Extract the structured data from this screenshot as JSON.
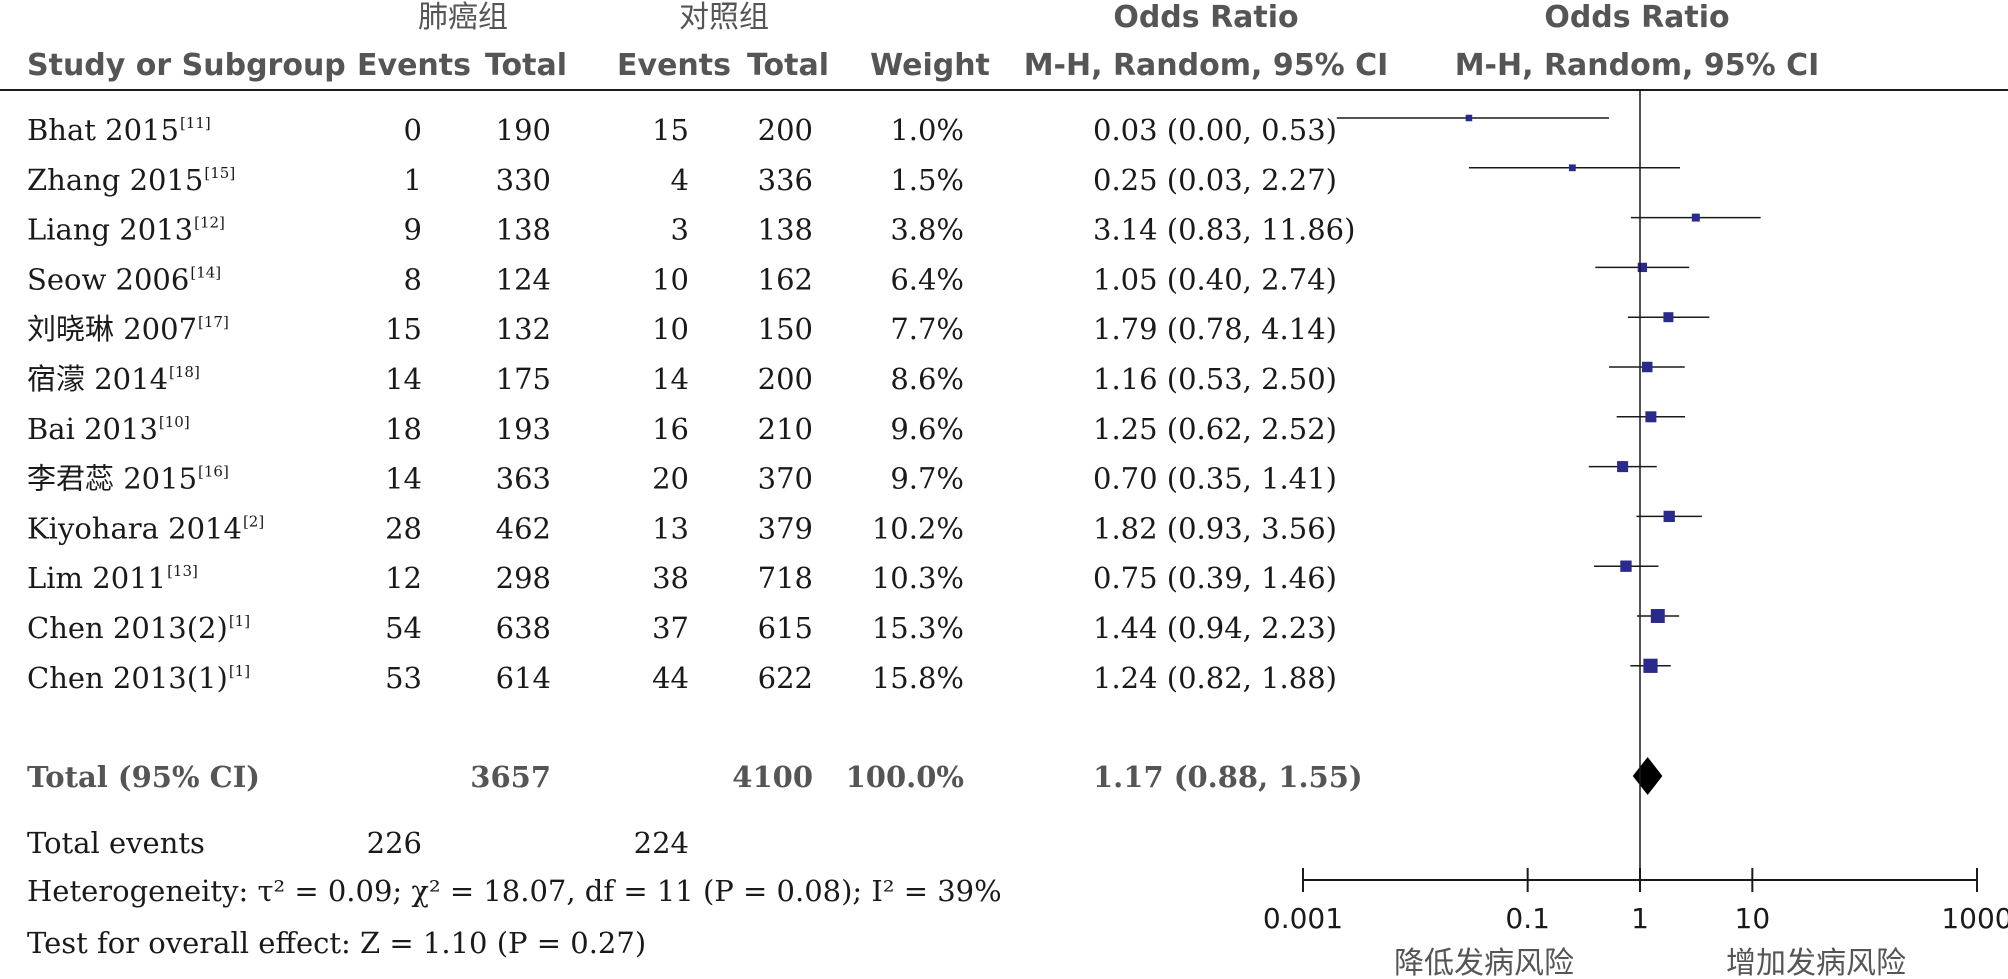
{
  "columns": {
    "group_exp": "肺癌组",
    "group_ctl": "对照组",
    "or_title": "Odds Ratio",
    "or_method": "M-H, Random, 95% CI",
    "study": "Study or Subgroup",
    "events": "Events",
    "total": "Total",
    "weight": "Weight"
  },
  "chart_data": {
    "type": "forest",
    "measure": "Odds Ratio",
    "method": "M-H, Random, 95% CI",
    "x_scale": "log",
    "xlim": [
      0.001,
      1000
    ],
    "xticks": [
      "0.001",
      "0.1",
      "1",
      "10",
      "1000"
    ],
    "xlabel_left": "降低发病风险",
    "xlabel_right": "增加发病风险",
    "studies": [
      {
        "name": "Bhat 2015",
        "ref": "[11]",
        "e1": "0",
        "t1": "190",
        "e2": "15",
        "t2": "200",
        "weight": "1.0%",
        "or_text": "0.03 (0.00, 0.53)",
        "or": 0.03,
        "lo": 0.002,
        "hi": 0.53,
        "w": 1.0
      },
      {
        "name": "Zhang 2015",
        "ref": "[15]",
        "e1": "1",
        "t1": "330",
        "e2": "4",
        "t2": "336",
        "weight": "1.5%",
        "or_text": "0.25 (0.03, 2.27)",
        "or": 0.25,
        "lo": 0.03,
        "hi": 2.27,
        "w": 1.5
      },
      {
        "name": "Liang 2013",
        "ref": "[12]",
        "e1": "9",
        "t1": "138",
        "e2": "3",
        "t2": "138",
        "weight": "3.8%",
        "or_text": "3.14 (0.83, 11.86)",
        "or": 3.14,
        "lo": 0.83,
        "hi": 11.86,
        "w": 3.8
      },
      {
        "name": "Seow 2006",
        "ref": "[14]",
        "e1": "8",
        "t1": "124",
        "e2": "10",
        "t2": "162",
        "weight": "6.4%",
        "or_text": "1.05 (0.40, 2.74)",
        "or": 1.05,
        "lo": 0.4,
        "hi": 2.74,
        "w": 6.4
      },
      {
        "name": "刘晓琳 2007",
        "ref": "[17]",
        "e1": "15",
        "t1": "132",
        "e2": "10",
        "t2": "150",
        "weight": "7.7%",
        "or_text": "1.79 (0.78, 4.14)",
        "or": 1.79,
        "lo": 0.78,
        "hi": 4.14,
        "w": 7.7
      },
      {
        "name": "宿濛 2014",
        "ref": "[18]",
        "e1": "14",
        "t1": "175",
        "e2": "14",
        "t2": "200",
        "weight": "8.6%",
        "or_text": "1.16 (0.53, 2.50)",
        "or": 1.16,
        "lo": 0.53,
        "hi": 2.5,
        "w": 8.6
      },
      {
        "name": "Bai 2013",
        "ref": "[10]",
        "e1": "18",
        "t1": "193",
        "e2": "16",
        "t2": "210",
        "weight": "9.6%",
        "or_text": "1.25 (0.62, 2.52)",
        "or": 1.25,
        "lo": 0.62,
        "hi": 2.52,
        "w": 9.6
      },
      {
        "name": "李君蕊 2015",
        "ref": "[16]",
        "e1": "14",
        "t1": "363",
        "e2": "20",
        "t2": "370",
        "weight": "9.7%",
        "or_text": "0.70 (0.35, 1.41)",
        "or": 0.7,
        "lo": 0.35,
        "hi": 1.41,
        "w": 9.7
      },
      {
        "name": "Kiyohara 2014",
        "ref": "[2]",
        "e1": "28",
        "t1": "462",
        "e2": "13",
        "t2": "379",
        "weight": "10.2%",
        "or_text": "1.82 (0.93, 3.56)",
        "or": 1.82,
        "lo": 0.93,
        "hi": 3.56,
        "w": 10.2
      },
      {
        "name": "Lim 2011",
        "ref": "[13]",
        "e1": "12",
        "t1": "298",
        "e2": "38",
        "t2": "718",
        "weight": "10.3%",
        "or_text": "0.75 (0.39, 1.46)",
        "or": 0.75,
        "lo": 0.39,
        "hi": 1.46,
        "w": 10.3
      },
      {
        "name": "Chen 2013(2)",
        "ref": "[1]",
        "e1": "54",
        "t1": "638",
        "e2": "37",
        "t2": "615",
        "weight": "15.3%",
        "or_text": "1.44 (0.94, 2.23)",
        "or": 1.44,
        "lo": 0.94,
        "hi": 2.23,
        "w": 15.3
      },
      {
        "name": "Chen 2013(1)",
        "ref": "[1]",
        "e1": "53",
        "t1": "614",
        "e2": "44",
        "t2": "622",
        "weight": "15.8%",
        "or_text": "1.24 (0.82, 1.88)",
        "or": 1.24,
        "lo": 0.82,
        "hi": 1.88,
        "w": 15.8
      }
    ],
    "total": {
      "label": "Total (95% CI)",
      "t1": "3657",
      "t2": "4100",
      "weight": "100.0%",
      "or_text": "1.17 (0.88, 1.55)",
      "or": 1.17,
      "lo": 0.88,
      "hi": 1.55
    },
    "total_events": {
      "label": "Total events",
      "e1": "226",
      "e2": "224"
    },
    "heterogeneity": "Heterogeneity: τ² = 0.09; χ² = 18.07, df = 11 (P = 0.08); I² = 39%",
    "overall_effect": "Test for overall effect: Z = 1.10 (P = 0.27)"
  }
}
